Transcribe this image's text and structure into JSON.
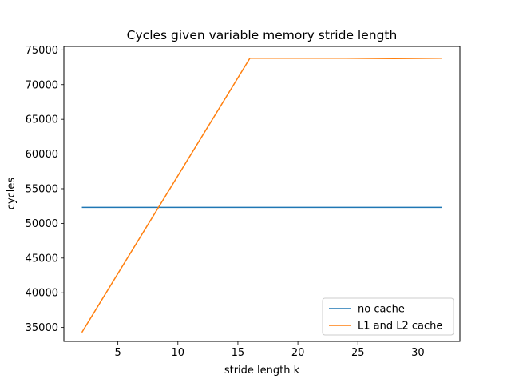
{
  "chart_data": {
    "type": "line",
    "title": "Cycles given variable memory stride length",
    "xlabel": "stride length k",
    "ylabel": "cycles",
    "xlim": [
      0.5,
      33.5
    ],
    "ylim": [
      33000,
      75500
    ],
    "xticks": [
      5,
      10,
      15,
      20,
      25,
      30
    ],
    "yticks": [
      35000,
      40000,
      45000,
      50000,
      55000,
      60000,
      65000,
      70000,
      75000
    ],
    "grid": false,
    "legend_position": "lower-right",
    "series": [
      {
        "name": "no cache",
        "color": "#1f77b4",
        "x": [
          2,
          4,
          8,
          16,
          24,
          32
        ],
        "y": [
          52300,
          52300,
          52300,
          52300,
          52300,
          52300
        ]
      },
      {
        "name": "L1 and L2 cache",
        "color": "#ff7f0e",
        "x": [
          2,
          16,
          20,
          24,
          28,
          32
        ],
        "y": [
          34300,
          73800,
          73800,
          73800,
          73750,
          73800
        ]
      }
    ]
  }
}
